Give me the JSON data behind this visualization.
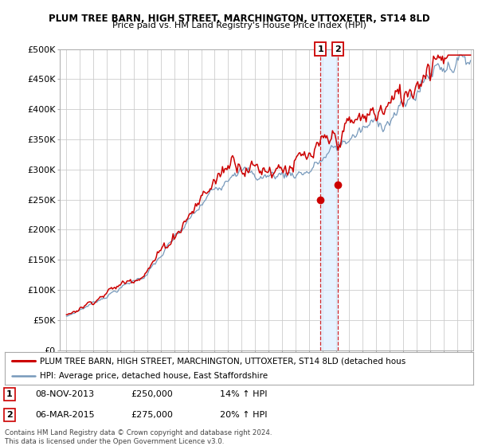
{
  "title1": "PLUM TREE BARN, HIGH STREET, MARCHINGTON, UTTOXETER, ST14 8LD",
  "title2": "Price paid vs. HM Land Registry's House Price Index (HPI)",
  "legend_line1": "PLUM TREE BARN, HIGH STREET, MARCHINGTON, UTTOXETER, ST14 8LD (detached hous",
  "legend_line2": "HPI: Average price, detached house, East Staffordshire",
  "transaction1_date": "08-NOV-2013",
  "transaction1_price": "£250,000",
  "transaction1_hpi": "14% ↑ HPI",
  "transaction2_date": "06-MAR-2015",
  "transaction2_price": "£275,000",
  "transaction2_hpi": "20% ↑ HPI",
  "footer": "Contains HM Land Registry data © Crown copyright and database right 2024.\nThis data is licensed under the Open Government Licence v3.0.",
  "red_color": "#cc0000",
  "blue_color": "#7799bb",
  "shade_color": "#ddeeff",
  "background_color": "#ffffff",
  "grid_color": "#cccccc",
  "ylim": [
    0,
    500000
  ],
  "yticks": [
    0,
    50000,
    100000,
    150000,
    200000,
    250000,
    300000,
    350000,
    400000,
    450000,
    500000
  ],
  "transaction1_x": 2013.85,
  "transaction1_y": 250000,
  "transaction2_x": 2015.17,
  "transaction2_y": 275000,
  "xmin": 1995,
  "xmax": 2025
}
